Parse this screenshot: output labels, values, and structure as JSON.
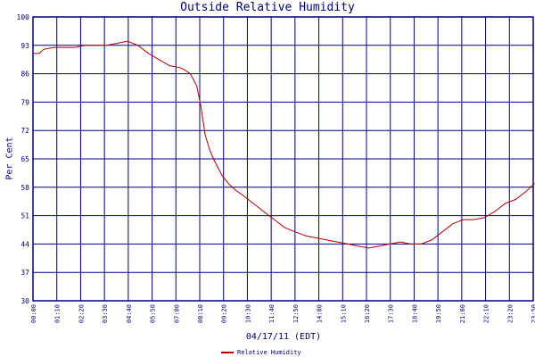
{
  "chart_data": {
    "type": "line",
    "title": "Outside Relative Humidity",
    "xlabel": "04/17/11 (EDT)",
    "ylabel": "Per Cent",
    "ylim": [
      30,
      100
    ],
    "y_ticks": [
      30,
      37,
      44,
      51,
      58,
      65,
      72,
      79,
      86,
      93,
      100
    ],
    "x_tick_labels": [
      "00:00",
      "01:10",
      "02:20",
      "03:30",
      "04:40",
      "05:50",
      "07:00",
      "08:10",
      "09:20",
      "10:30",
      "11:40",
      "12:50",
      "14:00",
      "15:10",
      "16:20",
      "17:30",
      "18:40",
      "19:50",
      "21:00",
      "22:10",
      "23:20",
      "23:50"
    ],
    "grid": true,
    "legend_position": "bottom",
    "colors": {
      "line": "#b00000",
      "grid": "#000080",
      "text": "#000080"
    },
    "series": [
      {
        "name": "Relative Humidity",
        "x_hours": [
          0,
          0.3,
          0.5,
          1,
          1.5,
          2,
          2.5,
          3,
          3.5,
          4,
          4.5,
          5,
          5.5,
          6,
          6.5,
          7,
          7.2,
          7.5,
          7.8,
          8,
          8.2,
          8.4,
          8.6,
          8.8,
          9,
          9.3,
          9.6,
          10,
          10.5,
          11,
          11.5,
          12,
          12.5,
          13,
          13.5,
          14,
          14.5,
          15,
          15.5,
          16,
          16.5,
          17,
          17.5,
          18,
          18.5,
          19,
          19.5,
          20,
          20.5,
          21,
          21.5,
          22,
          22.5,
          23,
          23.5,
          23.9
        ],
        "values": [
          91,
          91,
          92,
          92.5,
          92.5,
          92.5,
          93,
          93,
          93,
          93.5,
          94,
          93,
          91,
          89.5,
          88,
          87.5,
          87,
          86,
          83,
          78,
          71,
          67.5,
          65,
          63,
          61,
          59,
          57.5,
          56,
          54,
          52,
          50,
          48,
          47,
          46,
          45.5,
          45,
          44.5,
          44,
          43.5,
          43,
          43.5,
          44,
          44.5,
          44,
          44,
          45,
          47,
          49,
          50,
          50,
          50.5,
          52,
          54,
          55,
          57,
          59
        ]
      }
    ]
  }
}
